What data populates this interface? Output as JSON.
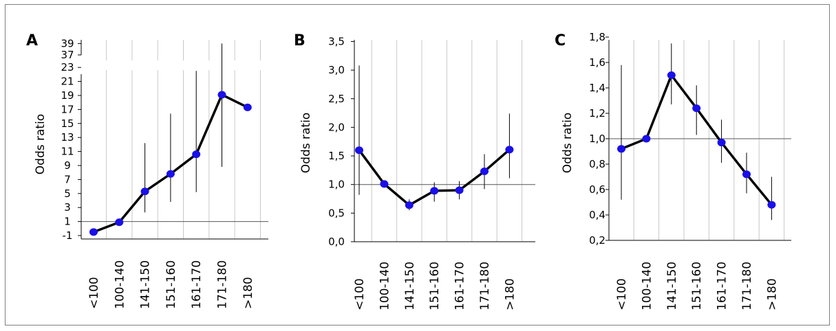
{
  "chart_data": [
    {
      "type": "line",
      "panel_label": "A",
      "ylabel": "Odds ratio",
      "categories": [
        "<100",
        "100-140",
        "141-150",
        "151-160",
        "161-170",
        "171-180",
        ">180"
      ],
      "values": [
        -0.5,
        0.9,
        5.3,
        7.8,
        10.6,
        19.1,
        17.3
      ],
      "error_bars": [
        [
          null,
          null
        ],
        [
          null,
          null
        ],
        [
          2.3,
          12.2
        ],
        [
          3.8,
          16.4
        ],
        [
          5.2,
          22.5
        ],
        [
          8.8,
          39
        ],
        [
          null,
          null
        ]
      ],
      "yticks": [
        "-1",
        "1",
        "3",
        "5",
        "7",
        "9",
        "11",
        "13",
        "15",
        "17",
        "19",
        "21",
        "23",
        "37",
        "39"
      ],
      "axis_break": [
        24,
        36
      ],
      "ylim": [
        -1.6,
        39.5
      ],
      "reference_line": 1,
      "grid": true,
      "colors": {
        "marker": "#1a10e8",
        "line": "#000000",
        "grid": "#c8c8c8"
      }
    },
    {
      "type": "line",
      "panel_label": "B",
      "ylabel": "Odds ratio",
      "categories": [
        "<100",
        "100-140",
        "141-150",
        "151-160",
        "161-170",
        "171-180",
        ">180"
      ],
      "values": [
        1.6,
        1.01,
        0.64,
        0.89,
        0.9,
        1.23,
        1.61
      ],
      "error_bars": [
        [
          0.82,
          3.08
        ],
        [
          null,
          null
        ],
        [
          0.55,
          0.74
        ],
        [
          0.7,
          1.04
        ],
        [
          0.74,
          1.06
        ],
        [
          0.92,
          1.53
        ],
        [
          1.11,
          2.24
        ]
      ],
      "yticks": [
        "0,0",
        "0,5",
        "1,0",
        "1,5",
        "2,0",
        "2,5",
        "3,0",
        "3,5"
      ],
      "ylim": [
        0,
        3.5
      ],
      "reference_line": 1,
      "grid": true,
      "colors": {
        "marker": "#1a10e8",
        "line": "#000000",
        "grid": "#c8c8c8"
      }
    },
    {
      "type": "line",
      "panel_label": "C",
      "ylabel": "Odds ratio",
      "categories": [
        "<100",
        "100-140",
        "141-150",
        "151-160",
        "161-170",
        "171-180",
        ">180"
      ],
      "values": [
        0.92,
        1.0,
        1.5,
        1.24,
        0.97,
        0.72,
        0.48
      ],
      "error_bars": [
        [
          0.52,
          1.58
        ],
        [
          null,
          null
        ],
        [
          1.27,
          1.75
        ],
        [
          1.03,
          1.42
        ],
        [
          0.81,
          1.15
        ],
        [
          0.57,
          0.89
        ],
        [
          0.36,
          0.7
        ]
      ],
      "yticks": [
        "0,2",
        "0,4",
        "0,6",
        "0,8",
        "1,0",
        "1,2",
        "1,4",
        "1,6",
        "1,8"
      ],
      "ylim": [
        0.2,
        1.8
      ],
      "reference_line": 1,
      "grid": true,
      "colors": {
        "marker": "#1a10e8",
        "line": "#000000",
        "grid": "#c8c8c8"
      }
    }
  ]
}
